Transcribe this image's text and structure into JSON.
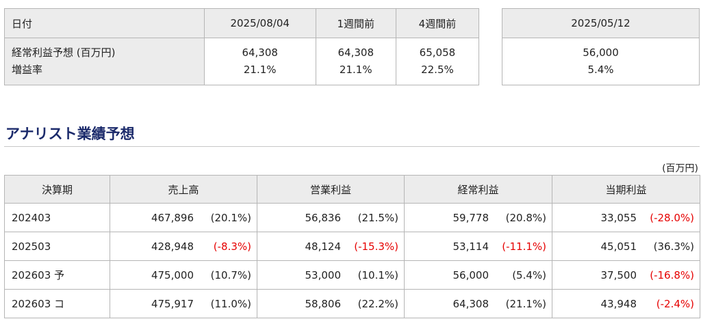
{
  "summary": {
    "headers": [
      "日付",
      "2025/08/04",
      "1週間前",
      "4週間前"
    ],
    "row_labels": [
      "経常利益予想 (百万円)",
      "増益率"
    ],
    "profit": [
      "64,308",
      "64,308",
      "65,058"
    ],
    "growth": [
      "21.1%",
      "21.1%",
      "22.5%"
    ]
  },
  "side": {
    "date": "2025/05/12",
    "profit": "56,000",
    "growth": "5.4%"
  },
  "section_title": "アナリスト業績予想",
  "unit": "(百万円)",
  "forecast": {
    "columns": [
      "決算期",
      "売上高",
      "営業利益",
      "経常利益",
      "当期利益"
    ],
    "rows": [
      {
        "period": "202403",
        "cells": [
          {
            "value": "467,896",
            "pct": "(20.1%)",
            "neg": false
          },
          {
            "value": "56,836",
            "pct": "(21.5%)",
            "neg": false
          },
          {
            "value": "59,778",
            "pct": "(20.8%)",
            "neg": false
          },
          {
            "value": "33,055",
            "pct": "(-28.0%)",
            "neg": true
          }
        ]
      },
      {
        "period": "202503",
        "cells": [
          {
            "value": "428,948",
            "pct": "(-8.3%)",
            "neg": true
          },
          {
            "value": "48,124",
            "pct": "(-15.3%)",
            "neg": true
          },
          {
            "value": "53,114",
            "pct": "(-11.1%)",
            "neg": true
          },
          {
            "value": "45,051",
            "pct": "(36.3%)",
            "neg": false
          }
        ]
      },
      {
        "period": "202603 予",
        "cells": [
          {
            "value": "475,000",
            "pct": "(10.7%)",
            "neg": false
          },
          {
            "value": "53,000",
            "pct": "(10.1%)",
            "neg": false
          },
          {
            "value": "56,000",
            "pct": "(5.4%)",
            "neg": false
          },
          {
            "value": "37,500",
            "pct": "(-16.8%)",
            "neg": true
          }
        ]
      },
      {
        "period": "202603 コ",
        "cells": [
          {
            "value": "475,917",
            "pct": "(11.0%)",
            "neg": false
          },
          {
            "value": "58,806",
            "pct": "(22.2%)",
            "neg": false
          },
          {
            "value": "64,308",
            "pct": "(21.1%)",
            "neg": false
          },
          {
            "value": "43,948",
            "pct": "(-2.4%)",
            "neg": true
          }
        ]
      }
    ]
  },
  "colors": {
    "header_bg": "#ececec",
    "negative": "#e60000",
    "title": "#1b2a6b"
  }
}
